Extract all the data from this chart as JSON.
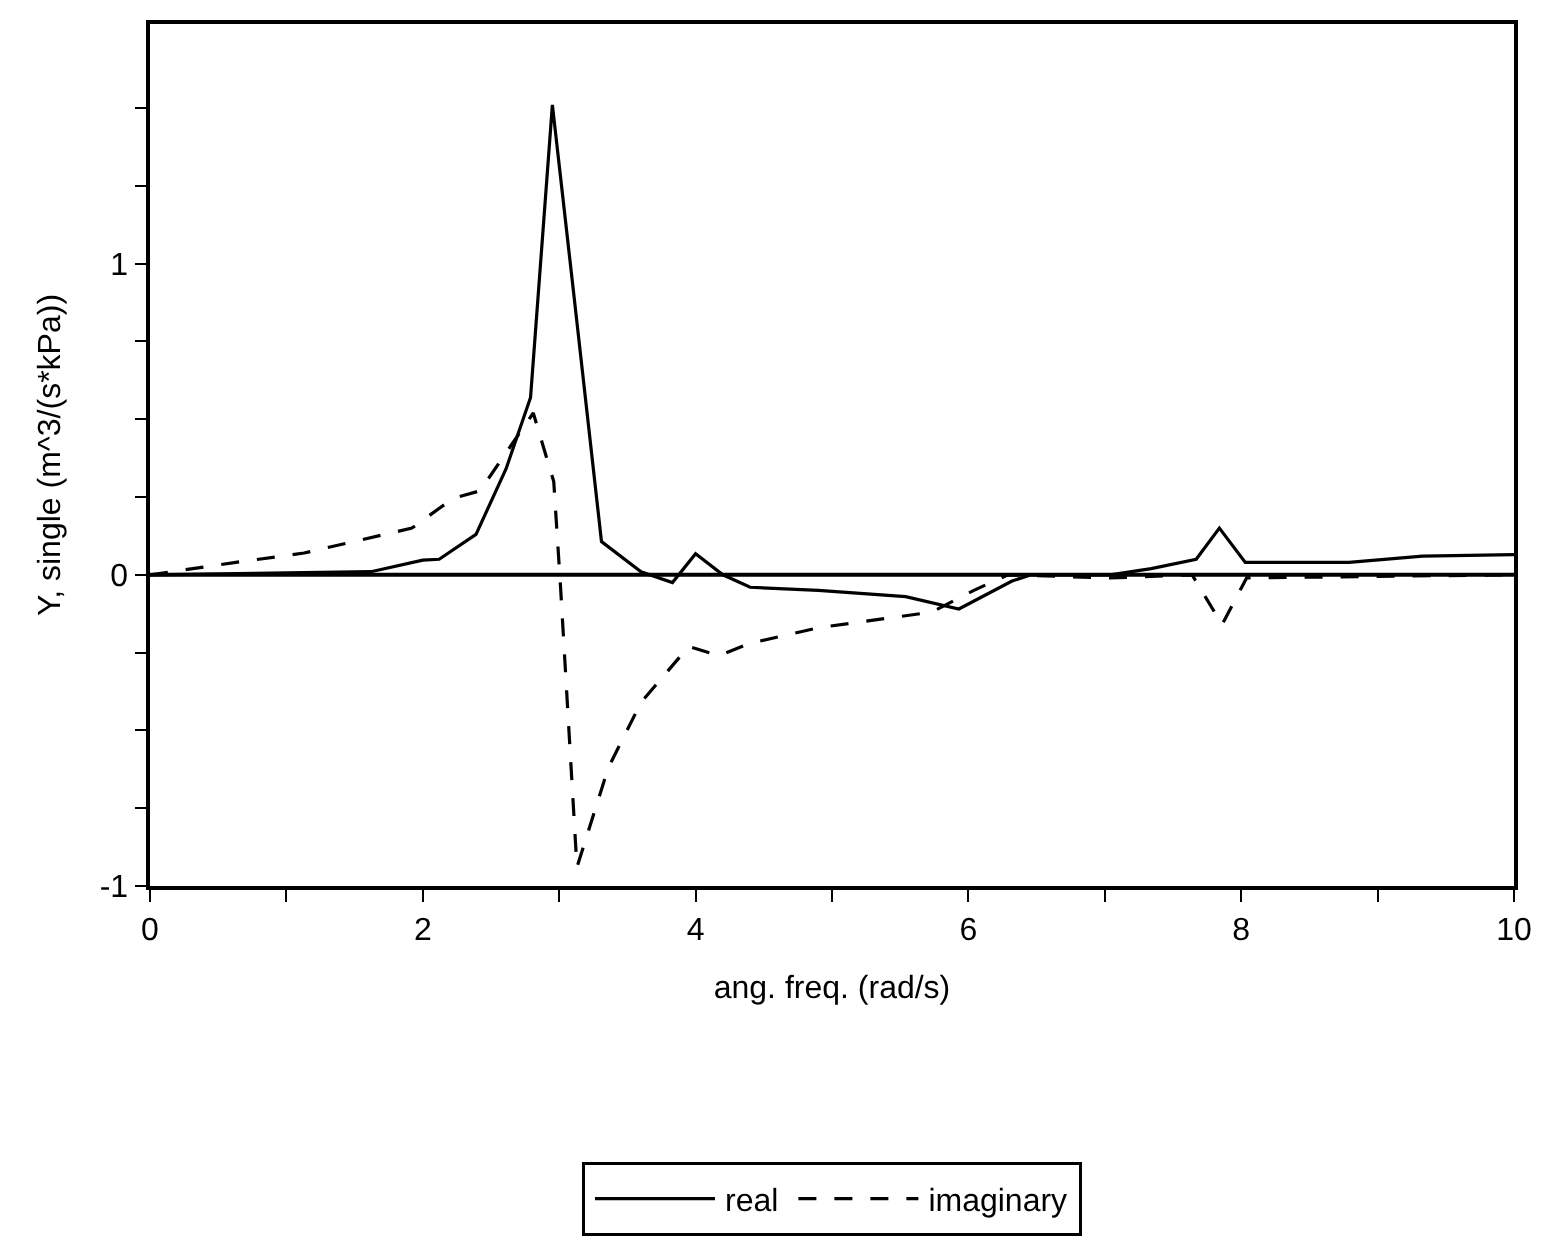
{
  "chart_data": {
    "type": "line",
    "xlabel": "ang. freq. (rad/s)",
    "ylabel": "Y, single (m^3/(s*kPa))",
    "xlim": [
      0,
      10
    ],
    "ylim": [
      -1,
      1.77
    ],
    "xticks": [
      0,
      {
        "value": 1,
        "label": null
      },
      2,
      {
        "value": 3,
        "label": null
      },
      4,
      {
        "value": 5,
        "label": null
      },
      6,
      {
        "value": 7,
        "label": null
      },
      8,
      {
        "value": 9,
        "label": null
      },
      10
    ],
    "yticks": [
      -1,
      {
        "value": -0.75,
        "label": null
      },
      {
        "value": -0.5,
        "label": null
      },
      {
        "value": -0.25,
        "label": null
      },
      0,
      {
        "value": 0.25,
        "label": null
      },
      {
        "value": 0.5,
        "label": null
      },
      {
        "value": 0.75,
        "label": null
      },
      1,
      {
        "value": 1.25,
        "label": null
      },
      {
        "value": 1.5,
        "label": null
      }
    ],
    "grid": false,
    "legend": "bottom",
    "marker": "none",
    "ref_lines": [
      {
        "axis": "y",
        "value": 0,
        "label": null,
        "color": "#000000",
        "line_style": "solid"
      }
    ],
    "series": [
      {
        "name": "real",
        "color": "#000000",
        "line_style": "solid",
        "x": [
          0,
          1.62,
          2.0,
          2.12,
          2.39,
          2.61,
          2.79,
          2.95,
          3.11,
          3.31,
          3.6,
          3.83,
          4.0,
          4.2,
          4.4,
          4.9,
          5.54,
          5.93,
          6.32,
          6.46,
          7.04,
          7.34,
          7.67,
          7.84,
          8.03,
          8.79,
          9.33,
          10.0
        ],
        "values": [
          0,
          0.01,
          0.047,
          0.05,
          0.13,
          0.34,
          0.57,
          1.51,
          0.89,
          0.107,
          0.01,
          -0.025,
          0.068,
          0,
          -0.04,
          -0.05,
          -0.07,
          -0.11,
          -0.02,
          0,
          0,
          0.02,
          0.05,
          0.15,
          0.04,
          0.04,
          0.06,
          0.065
        ]
      },
      {
        "name": "imaginary",
        "color": "#000000",
        "line_style": "dashed",
        "x": [
          0,
          0.63,
          1.13,
          1.92,
          2.22,
          2.42,
          2.81,
          2.96,
          3.01,
          3.13,
          3.36,
          3.6,
          3.95,
          4.17,
          4.4,
          4.9,
          5.73,
          6.04,
          6.29,
          7.04,
          7.64,
          7.86,
          8.04,
          10.0
        ],
        "values": [
          0,
          0.04,
          0.07,
          0.15,
          0.245,
          0.27,
          0.52,
          0.3,
          -0.04,
          -0.94,
          -0.62,
          -0.41,
          -0.23,
          -0.26,
          -0.22,
          -0.17,
          -0.12,
          -0.05,
          0,
          -0.01,
          0,
          -0.16,
          -0.01,
          0
        ]
      }
    ]
  }
}
